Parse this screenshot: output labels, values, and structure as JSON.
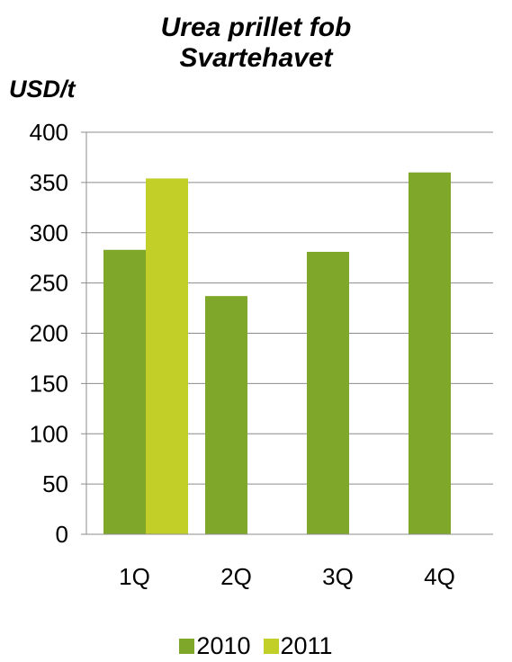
{
  "chart_data": {
    "type": "bar",
    "title_lines": [
      "Urea prillet fob",
      "Svartehavet"
    ],
    "ylabel": "USD/t",
    "xlabel": "",
    "categories": [
      "1Q",
      "2Q",
      "3Q",
      "4Q"
    ],
    "series": [
      {
        "name": "2010",
        "values": [
          283,
          237,
          281,
          360
        ],
        "color": "#7fa82a"
      },
      {
        "name": "2011",
        "values": [
          354,
          null,
          null,
          null
        ],
        "color": "#c2cf29"
      }
    ],
    "ylim": [
      0,
      400
    ],
    "yticks": [
      0,
      50,
      100,
      150,
      200,
      250,
      300,
      350,
      400
    ],
    "grid": true,
    "legend_position": "bottom"
  }
}
